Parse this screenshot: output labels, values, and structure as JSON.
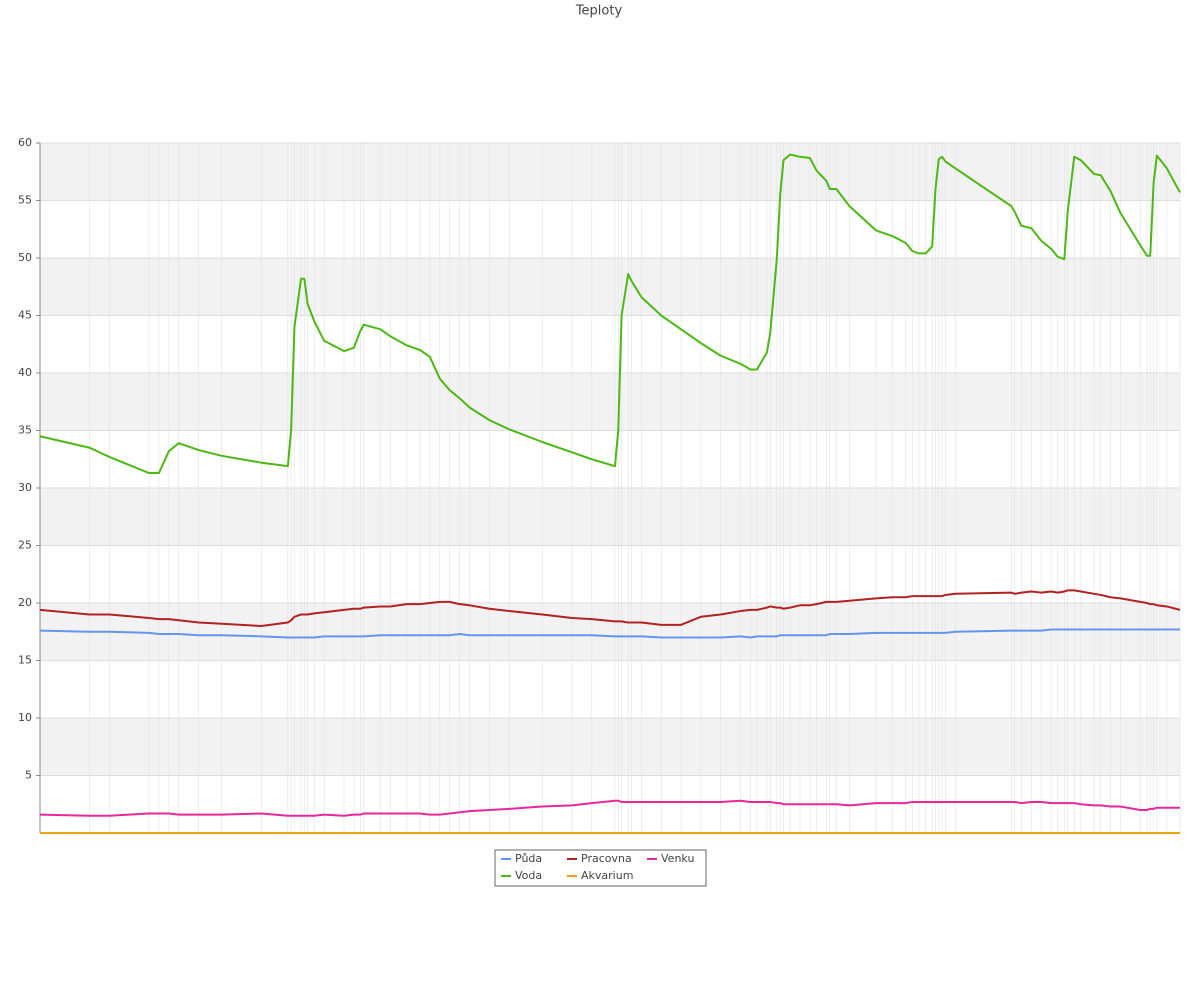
{
  "chart_data": {
    "type": "line",
    "title": "Teploty",
    "x": [
      1,
      16,
      22,
      34,
      37,
      40,
      43,
      49,
      56,
      68,
      76,
      77,
      78,
      80,
      81,
      82,
      84,
      87,
      93,
      96,
      98,
      99,
      104,
      107,
      112,
      116,
      119,
      122,
      125,
      128,
      131,
      137,
      143,
      153,
      162,
      168,
      175,
      176,
      177,
      179,
      180,
      183,
      189,
      195,
      201,
      207,
      213,
      216,
      218,
      221,
      222,
      224,
      225,
      226,
      228,
      231,
      234,
      236,
      239,
      240,
      242,
      246,
      254,
      259,
      263,
      265,
      267,
      269,
      271,
      272,
      273,
      274,
      275,
      278,
      295,
      296,
      298,
      301,
      304,
      307,
      309,
      311,
      312,
      314,
      316,
      320,
      322,
      325,
      328,
      334,
      336,
      337,
      338,
      339,
      342,
      346
    ],
    "xlim": [
      1,
      346
    ],
    "ylim": [
      0,
      60
    ],
    "yticks": [
      5,
      10,
      15,
      20,
      25,
      30,
      35,
      40,
      45,
      50,
      55,
      60
    ],
    "grid": true,
    "series": [
      {
        "name": "Půda",
        "color": "#6495ed",
        "values": [
          17.6,
          17.5,
          17.5,
          17.4,
          17.3,
          17.3,
          17.3,
          17.2,
          17.2,
          17.1,
          17.0,
          17.0,
          17.0,
          17.0,
          17.0,
          17.0,
          17.0,
          17.1,
          17.1,
          17.1,
          17.1,
          17.1,
          17.2,
          17.2,
          17.2,
          17.2,
          17.2,
          17.2,
          17.2,
          17.3,
          17.2,
          17.2,
          17.2,
          17.2,
          17.2,
          17.2,
          17.1,
          17.1,
          17.1,
          17.1,
          17.1,
          17.1,
          17.0,
          17.0,
          17.0,
          17.0,
          17.1,
          17.0,
          17.1,
          17.1,
          17.1,
          17.1,
          17.2,
          17.2,
          17.2,
          17.2,
          17.2,
          17.2,
          17.2,
          17.3,
          17.3,
          17.3,
          17.4,
          17.4,
          17.4,
          17.4,
          17.4,
          17.4,
          17.4,
          17.4,
          17.4,
          17.4,
          17.4,
          17.5,
          17.6,
          17.6,
          17.6,
          17.6,
          17.6,
          17.7,
          17.7,
          17.7,
          17.7,
          17.7,
          17.7,
          17.7,
          17.7,
          17.7,
          17.7,
          17.7,
          17.7,
          17.7,
          17.7,
          17.7,
          17.7,
          17.7
        ]
      },
      {
        "name": "Pracovna",
        "color": "#b22222",
        "values": [
          19.4,
          19.0,
          19.0,
          18.7,
          18.6,
          18.6,
          18.5,
          18.3,
          18.2,
          18.0,
          18.3,
          18.5,
          18.8,
          19.0,
          19.0,
          19.0,
          19.1,
          19.2,
          19.4,
          19.5,
          19.5,
          19.6,
          19.7,
          19.7,
          19.9,
          19.9,
          20.0,
          20.1,
          20.1,
          19.9,
          19.8,
          19.5,
          19.3,
          19.0,
          18.7,
          18.6,
          18.4,
          18.4,
          18.4,
          18.3,
          18.3,
          18.3,
          18.1,
          18.1,
          18.8,
          19.0,
          19.3,
          19.4,
          19.4,
          19.6,
          19.7,
          19.6,
          19.6,
          19.5,
          19.6,
          19.8,
          19.8,
          19.9,
          20.1,
          20.1,
          20.1,
          20.2,
          20.4,
          20.5,
          20.5,
          20.6,
          20.6,
          20.6,
          20.6,
          20.6,
          20.6,
          20.6,
          20.7,
          20.8,
          20.9,
          20.8,
          20.9,
          21.0,
          20.9,
          21.0,
          20.9,
          21.0,
          21.1,
          21.1,
          21.0,
          20.8,
          20.7,
          20.5,
          20.4,
          20.1,
          20.0,
          19.9,
          19.9,
          19.8,
          19.7,
          19.4
        ]
      },
      {
        "name": "Venku",
        "color": "#e8289a",
        "values": [
          1.6,
          1.5,
          1.5,
          1.7,
          1.7,
          1.7,
          1.6,
          1.6,
          1.6,
          1.7,
          1.5,
          1.5,
          1.5,
          1.5,
          1.5,
          1.5,
          1.5,
          1.6,
          1.5,
          1.6,
          1.6,
          1.7,
          1.7,
          1.7,
          1.7,
          1.7,
          1.6,
          1.6,
          1.7,
          1.8,
          1.9,
          2.0,
          2.1,
          2.3,
          2.4,
          2.6,
          2.8,
          2.8,
          2.7,
          2.7,
          2.7,
          2.7,
          2.7,
          2.7,
          2.7,
          2.7,
          2.8,
          2.7,
          2.7,
          2.7,
          2.7,
          2.6,
          2.6,
          2.5,
          2.5,
          2.5,
          2.5,
          2.5,
          2.5,
          2.5,
          2.5,
          2.4,
          2.6,
          2.6,
          2.6,
          2.7,
          2.7,
          2.7,
          2.7,
          2.7,
          2.7,
          2.7,
          2.7,
          2.7,
          2.7,
          2.7,
          2.6,
          2.7,
          2.7,
          2.6,
          2.6,
          2.6,
          2.6,
          2.6,
          2.5,
          2.4,
          2.4,
          2.3,
          2.3,
          2.0,
          2.0,
          2.1,
          2.1,
          2.2,
          2.2,
          2.2
        ]
      },
      {
        "name": "Voda",
        "color": "#4cb814",
        "values": [
          34.5,
          33.5,
          32.7,
          31.3,
          31.3,
          33.2,
          33.9,
          33.3,
          32.8,
          32.2,
          31.9,
          35,
          44,
          48.2,
          48.2,
          46,
          44.5,
          42.8,
          41.9,
          42.2,
          43.7,
          44.2,
          43.8,
          43.2,
          42.4,
          42,
          41.4,
          39.5,
          38.5,
          37.8,
          37,
          35.9,
          35.1,
          34,
          33.1,
          32.5,
          31.9,
          35,
          45,
          48.6,
          48,
          46.6,
          45,
          43.8,
          42.6,
          41.5,
          40.8,
          40.3,
          40.3,
          41.8,
          43.5,
          50,
          55.5,
          58.5,
          59,
          58.8,
          58.7,
          57.6,
          56.7,
          56,
          56,
          54.5,
          52.4,
          51.9,
          51.3,
          50.6,
          50.4,
          50.4,
          51,
          56,
          58.6,
          58.8,
          58.4,
          57.8,
          54.5,
          54,
          52.8,
          52.6,
          51.5,
          50.8,
          50.1,
          49.9,
          54,
          58.8,
          58.5,
          57.3,
          57.2,
          55.8,
          53.9,
          51.1,
          50.2,
          50.2,
          56.5,
          58.9,
          57.8,
          55.7
        ]
      },
      {
        "name": "Akvarium",
        "color": "#f0a30a",
        "values": [
          0,
          0,
          0,
          0,
          0,
          0,
          0,
          0,
          0,
          0,
          0,
          0,
          0,
          0,
          0,
          0,
          0,
          0,
          0,
          0,
          0,
          0,
          0,
          0,
          0,
          0,
          0,
          0,
          0,
          0,
          0,
          0,
          0,
          0,
          0,
          0,
          0,
          0,
          0,
          0,
          0,
          0,
          0,
          0,
          0,
          0,
          0,
          0,
          0,
          0,
          0,
          0,
          0,
          0,
          0,
          0,
          0,
          0,
          0,
          0,
          0,
          0,
          0,
          0,
          0,
          0,
          0,
          0,
          0,
          0,
          0,
          0,
          0,
          0,
          0,
          0,
          0,
          0,
          0,
          0,
          0,
          0,
          0,
          0,
          0,
          0,
          0,
          0,
          0,
          0,
          0,
          0,
          0,
          0,
          0,
          0
        ]
      }
    ]
  }
}
